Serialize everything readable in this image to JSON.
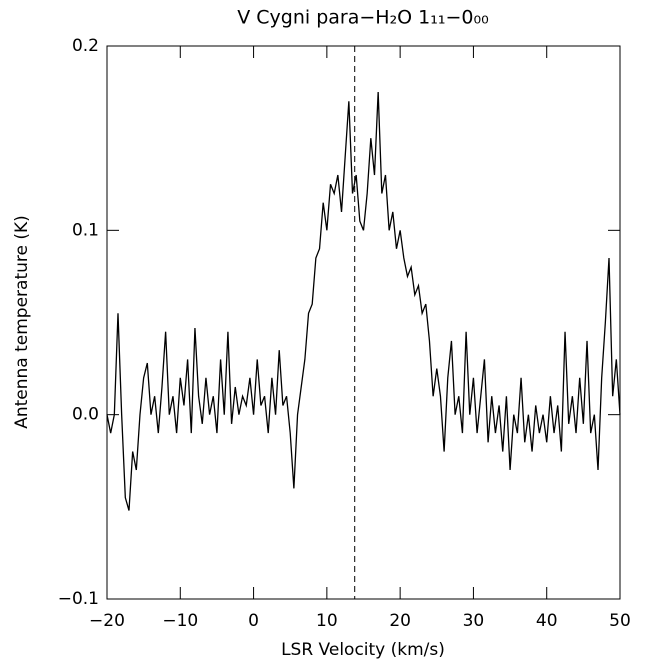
{
  "chart_data": {
    "type": "line",
    "title": "V Cygni para−H₂O 1₁₁−0₀₀",
    "x_label": "LSR Velocity (km/s)",
    "y_label": "Antenna temperature (K)",
    "xlim": [
      -20,
      50
    ],
    "ylim": [
      -0.1,
      0.2
    ],
    "xticks": [
      {
        "value": -20,
        "label": "−20"
      },
      {
        "value": -10,
        "label": "−10"
      },
      0,
      10,
      20,
      30,
      40,
      50
    ],
    "yticks": [
      {
        "value": -0.1,
        "label": "−0.1"
      },
      {
        "value": 0,
        "label": "0.0"
      },
      0.1,
      0.2
    ],
    "vline": 13.8,
    "x": [
      -20,
      -19.5,
      -19,
      -18.5,
      -18,
      -17.5,
      -17,
      -16.5,
      -16,
      -15.5,
      -15,
      -14.5,
      -14,
      -13.5,
      -13,
      -12.5,
      -12,
      -11.5,
      -11,
      -10.5,
      -10,
      -9.5,
      -9,
      -8.5,
      -8,
      -7.5,
      -7,
      -6.5,
      -6,
      -5.5,
      -5,
      -4.5,
      -4,
      -3.5,
      -3,
      -2.5,
      -2,
      -1.5,
      -1,
      -0.5,
      0,
      0.5,
      1,
      1.5,
      2,
      2.5,
      3,
      3.5,
      4,
      4.5,
      5,
      5.5,
      6,
      6.5,
      7,
      7.5,
      8,
      8.5,
      9,
      9.5,
      10,
      10.5,
      11,
      11.5,
      12,
      12.5,
      13,
      13.5,
      14,
      14.5,
      15,
      15.5,
      16,
      16.5,
      17,
      17.5,
      18,
      18.5,
      19,
      19.5,
      20,
      20.5,
      21,
      21.5,
      22,
      22.5,
      23,
      23.5,
      24,
      24.5,
      25,
      25.5,
      26,
      26.5,
      27,
      27.5,
      28,
      28.5,
      29,
      29.5,
      30,
      30.5,
      31,
      31.5,
      32,
      32.5,
      33,
      33.5,
      34,
      34.5,
      35,
      35.5,
      36,
      36.5,
      37,
      37.5,
      38,
      38.5,
      39,
      39.5,
      40,
      40.5,
      41,
      41.5,
      42,
      42.5,
      43,
      43.5,
      44,
      44.5,
      45,
      45.5,
      46,
      46.5,
      47,
      47.5,
      48,
      48.5,
      49,
      49.5,
      50
    ],
    "series": [
      {
        "color": "#000000",
        "values": [
          0.0,
          -0.01,
          0.0,
          0.055,
          0.0,
          -0.045,
          -0.052,
          -0.02,
          -0.03,
          0.0,
          0.02,
          0.028,
          0.0,
          0.01,
          -0.01,
          0.015,
          0.045,
          0.0,
          0.01,
          -0.01,
          0.02,
          0.005,
          0.03,
          -0.01,
          0.047,
          0.01,
          -0.005,
          0.02,
          0.0,
          0.01,
          -0.01,
          0.03,
          0.0,
          0.045,
          -0.005,
          0.015,
          0.0,
          0.01,
          0.005,
          0.02,
          0.0,
          0.03,
          0.005,
          0.01,
          -0.01,
          0.02,
          0.0,
          0.035,
          0.005,
          0.01,
          -0.01,
          -0.04,
          0.0,
          0.015,
          0.03,
          0.055,
          0.06,
          0.085,
          0.09,
          0.115,
          0.1,
          0.125,
          0.12,
          0.13,
          0.11,
          0.14,
          0.17,
          0.12,
          0.13,
          0.105,
          0.1,
          0.12,
          0.15,
          0.13,
          0.175,
          0.12,
          0.13,
          0.1,
          0.11,
          0.09,
          0.1,
          0.085,
          0.075,
          0.08,
          0.065,
          0.07,
          0.055,
          0.06,
          0.04,
          0.01,
          0.025,
          0.01,
          -0.02,
          0.02,
          0.04,
          0.0,
          0.01,
          -0.01,
          0.045,
          0.0,
          0.02,
          -0.01,
          0.01,
          0.03,
          -0.015,
          0.01,
          -0.01,
          0.005,
          -0.02,
          0.01,
          -0.03,
          0.0,
          -0.01,
          0.02,
          -0.015,
          0.0,
          -0.02,
          0.005,
          -0.01,
          0.0,
          -0.015,
          0.01,
          -0.01,
          0.005,
          -0.02,
          0.045,
          -0.005,
          0.01,
          -0.01,
          0.02,
          -0.005,
          0.04,
          -0.01,
          0.0,
          -0.03,
          0.02,
          0.05,
          0.085,
          0.01,
          0.03,
          0.0
        ]
      }
    ]
  }
}
